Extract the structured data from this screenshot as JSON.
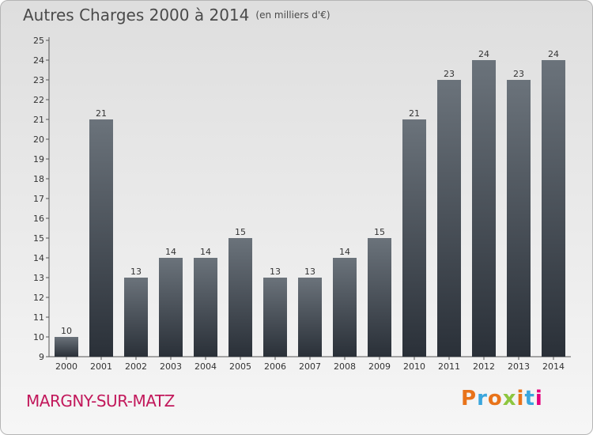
{
  "header": {
    "title": "Autres Charges 2000 à 2014",
    "unit": "(en milliers d'€)"
  },
  "footer": {
    "commune": "MARGNY-SUR-MATZ",
    "logo_text": "Proxiti",
    "logo_colors": [
      "#e8731a",
      "#3aa6dd",
      "#e8731a",
      "#8dc63f",
      "#e8731a",
      "#3aa6dd",
      "#e5007d"
    ]
  },
  "colors": {
    "bar_top": "#6b737b",
    "bar_bottom": "#2a3038",
    "axis": "#555555",
    "commune": "#c2185b"
  },
  "chart_data": {
    "type": "bar",
    "title": "Autres Charges 2000 à 2014",
    "subtitle": "(en milliers d'€)",
    "categories": [
      "2000",
      "2001",
      "2002",
      "2003",
      "2004",
      "2005",
      "2006",
      "2007",
      "2008",
      "2009",
      "2010",
      "2011",
      "2012",
      "2013",
      "2014"
    ],
    "values": [
      10,
      21,
      13,
      14,
      14,
      15,
      13,
      13,
      14,
      15,
      21,
      23,
      24,
      23,
      24
    ],
    "ylim": [
      9,
      25
    ],
    "yticks": [
      9,
      10,
      11,
      12,
      13,
      14,
      15,
      16,
      17,
      18,
      19,
      20,
      21,
      22,
      23,
      24,
      25
    ],
    "grid": false,
    "xlabel": "",
    "ylabel": ""
  }
}
